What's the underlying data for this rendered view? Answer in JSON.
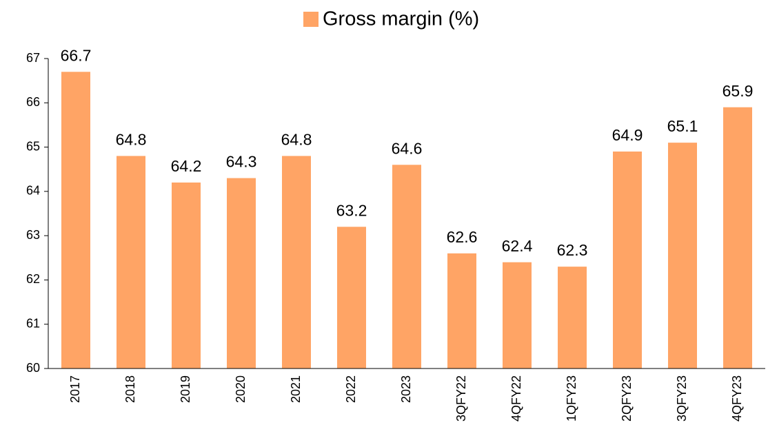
{
  "chart_data": {
    "type": "bar",
    "legend": "Gross margin (%)",
    "categories": [
      "2017",
      "2018",
      "2019",
      "2020",
      "2021",
      "2022",
      "2023",
      "3QFY22",
      "4QFY22",
      "1QFY23",
      "2QFY23",
      "3QFY23",
      "4QFY23"
    ],
    "values": [
      66.7,
      64.8,
      64.2,
      64.3,
      64.8,
      63.2,
      64.6,
      62.6,
      62.4,
      62.3,
      64.9,
      65.1,
      65.9
    ],
    "color": "#ffa465",
    "ylim": [
      60,
      67
    ],
    "yticks": [
      60,
      61,
      62,
      63,
      64,
      65,
      66,
      67
    ],
    "grid": false,
    "legend_position": "top"
  }
}
